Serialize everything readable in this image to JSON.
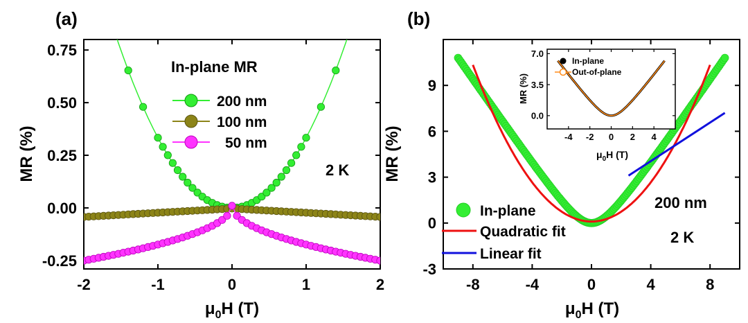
{
  "chart_data": [
    {
      "type": "scatter",
      "panel_label": "(a)",
      "xlabel_main": "μ",
      "xlabel_sub": "0",
      "xlabel_rest": "H (T)",
      "ylabel": "MR (%)",
      "xlim": [
        -2,
        2
      ],
      "ylim": [
        -0.29,
        0.8
      ],
      "xticks": [
        "-2",
        "-1",
        "0",
        "1",
        "2"
      ],
      "yticks": [
        "-0.25",
        "0.00",
        "0.25",
        "0.50",
        "0.75"
      ],
      "legend_title": "In-plane MR",
      "annotation": "2 K",
      "series": [
        {
          "name": "200 nm",
          "color": "#33ee33",
          "stroke": "#119911",
          "model": "quadratic",
          "coef": 0.3333,
          "offset": 0.0
        },
        {
          "name": "100 nm",
          "color": "#8c8418",
          "stroke": "#5a5410",
          "model": "abs",
          "coef": -0.02,
          "offset": -0.003
        },
        {
          "name": "50 nm",
          "color": "#ff33ff",
          "stroke": "#bb00bb",
          "model": "sqrt",
          "coef": -0.1842,
          "offset": 0.01
        }
      ]
    },
    {
      "type": "scatter",
      "panel_label": "(b)",
      "xlabel_main": "μ",
      "xlabel_sub": "0",
      "xlabel_rest": "H (T)",
      "ylabel": "MR (%)",
      "xlim": [
        -10,
        10
      ],
      "ylim": [
        -3,
        12
      ],
      "xticks": [
        "-8",
        "-4",
        "0",
        "4",
        "8"
      ],
      "yticks": [
        "-3",
        "0",
        "3",
        "6",
        "9"
      ],
      "annotations": [
        "200 nm",
        "2 K"
      ],
      "series": [
        {
          "name": "In-plane",
          "color": "#33ee33",
          "x_range": [
            -9,
            9
          ],
          "y_at_max": 10.8
        },
        {
          "name": "Quadratic fit",
          "color": "#ee1111",
          "coef": 0.16,
          "offset": 0.1
        },
        {
          "name": "Linear fit",
          "color": "#1111dd",
          "x_range": [
            2.5,
            9
          ],
          "y_range": [
            3.1,
            7.2
          ]
        }
      ],
      "inset": {
        "xlabel_main": "μ",
        "xlabel_sub": "0",
        "xlabel_rest": "H (T)",
        "ylabel": "MR (%)",
        "xlim": [
          -6,
          6
        ],
        "ylim": [
          -1.5,
          7.5
        ],
        "xticks": [
          "-4",
          "-2",
          "0",
          "2",
          "4"
        ],
        "yticks": [
          "0.0",
          "3.5",
          "7.0"
        ],
        "series": [
          {
            "name": "In-plane",
            "color": "#000000"
          },
          {
            "name": "Out-of-plane",
            "color": "#ff8c1a"
          }
        ],
        "y_at_5": 6.2
      }
    }
  ]
}
